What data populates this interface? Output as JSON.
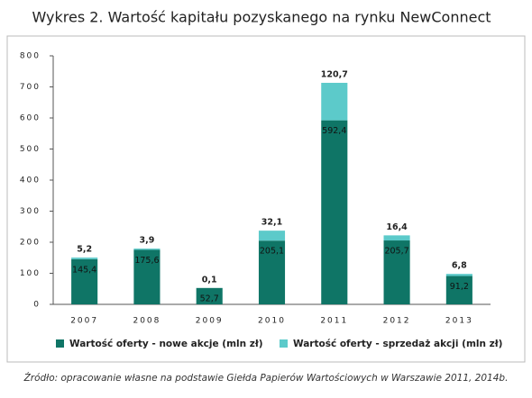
{
  "chart_data": {
    "type": "stacked_bar",
    "title": "Wykres 2. Wartość kapitału pozyskanego na rynku NewConnect",
    "categories": [
      "2007",
      "2008",
      "2009",
      "2010",
      "2011",
      "2012",
      "2013"
    ],
    "series": [
      {
        "name": "Wartość oferty - nowe akcje (mln zł)",
        "color": "#0f7566",
        "values": [
          145.4,
          175.6,
          52.7,
          205.1,
          592.4,
          205.7,
          91.2
        ],
        "value_labels": [
          "145,4",
          "175,6",
          "52,7",
          "205,1",
          "592,4",
          "205,7",
          "91,2"
        ]
      },
      {
        "name": "Wartość oferty - sprzedaż akcji (mln zł)",
        "color": "#5ccaca",
        "values": [
          5.2,
          3.9,
          0.1,
          32.1,
          120.7,
          16.4,
          6.8
        ],
        "value_labels": [
          "5,2",
          "3,9",
          "0,1",
          "32,1",
          "120,7",
          "16,4",
          "6,8"
        ]
      }
    ],
    "ylim": [
      0,
      800
    ],
    "yticks": [
      0,
      100,
      200,
      300,
      400,
      500,
      600,
      700,
      800
    ],
    "grid": false,
    "legend": "bottom",
    "source": "Źródło: opracowanie własne na podstawie Giełda Papierów Wartościowych w Warszawie 2011, 2014b."
  }
}
